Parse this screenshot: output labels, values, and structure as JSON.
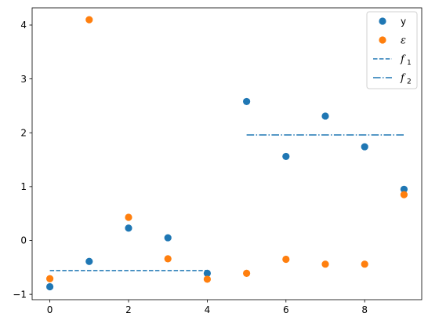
{
  "chart_data": {
    "type": "scatter",
    "x_ticks": [
      0,
      2,
      4,
      6,
      8
    ],
    "y_ticks": [
      -1,
      0,
      1,
      2,
      3,
      4
    ],
    "xlim": [
      -0.45,
      9.45
    ],
    "ylim": [
      -1.1,
      4.32
    ],
    "grid": false,
    "legend_position": "top-right",
    "series": [
      {
        "name": "y",
        "kind": "scatter",
        "color": "#1f77b4",
        "x": [
          0,
          1,
          2,
          3,
          4,
          5,
          6,
          7,
          8,
          9
        ],
        "y": [
          -0.86,
          -0.39,
          0.23,
          0.05,
          -0.61,
          2.58,
          1.56,
          2.31,
          1.74,
          0.95
        ]
      },
      {
        "name": "ε",
        "kind": "scatter",
        "color": "#ff7f0e",
        "x": [
          0,
          1,
          2,
          3,
          4,
          5,
          6,
          7,
          8,
          9
        ],
        "y": [
          -0.71,
          4.1,
          0.43,
          -0.34,
          -0.72,
          -0.61,
          -0.35,
          -0.44,
          -0.44,
          0.85
        ]
      },
      {
        "name": "f",
        "subscript": "1",
        "kind": "line",
        "style": "dashed",
        "color": "#1f77b4",
        "x": [
          0,
          4
        ],
        "y": [
          -0.56,
          -0.56
        ]
      },
      {
        "name": "f",
        "subscript": "2",
        "kind": "line",
        "style": "dashdot",
        "color": "#1f77b4",
        "x": [
          5,
          9
        ],
        "y": [
          1.96,
          1.96
        ]
      }
    ]
  }
}
